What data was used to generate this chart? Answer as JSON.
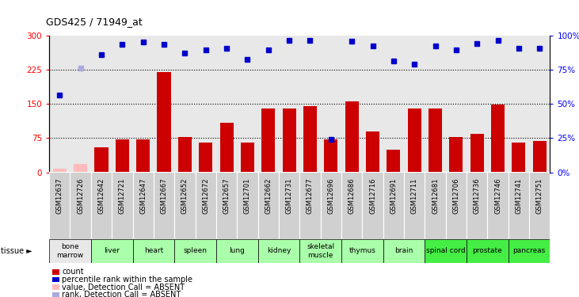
{
  "title": "GDS425 / 71949_at",
  "gsm_labels": [
    "GSM12637",
    "GSM12726",
    "GSM12642",
    "GSM12721",
    "GSM12647",
    "GSM12667",
    "GSM12652",
    "GSM12672",
    "GSM12657",
    "GSM12701",
    "GSM12662",
    "GSM12731",
    "GSM12677",
    "GSM12696",
    "GSM12686",
    "GSM12716",
    "GSM12691",
    "GSM12711",
    "GSM12681",
    "GSM12706",
    "GSM12736",
    "GSM12746",
    "GSM12741",
    "GSM12751"
  ],
  "bar_values": [
    8,
    18,
    55,
    73,
    72,
    220,
    78,
    65,
    108,
    65,
    140,
    140,
    145,
    72,
    155,
    90,
    50,
    140,
    140,
    78,
    85,
    148,
    65,
    68
  ],
  "bar_absent": [
    true,
    true,
    false,
    false,
    false,
    false,
    false,
    false,
    false,
    false,
    false,
    false,
    false,
    false,
    false,
    false,
    false,
    false,
    false,
    false,
    false,
    false,
    false,
    false
  ],
  "rank_values": [
    170,
    228,
    258,
    280,
    286,
    280,
    262,
    268,
    272,
    248,
    268,
    290,
    290,
    72,
    288,
    278,
    244,
    238,
    278,
    268,
    282,
    290,
    272,
    272
  ],
  "rank_absent": [
    false,
    true,
    false,
    false,
    false,
    false,
    false,
    false,
    false,
    false,
    false,
    false,
    false,
    false,
    false,
    false,
    false,
    false,
    false,
    false,
    false,
    false,
    false,
    false
  ],
  "tissues": [
    {
      "name": "bone\nmarrow",
      "start": 0,
      "end": 2,
      "color": "#e8e8e8"
    },
    {
      "name": "liver",
      "start": 2,
      "end": 4,
      "color": "#aaffaa"
    },
    {
      "name": "heart",
      "start": 4,
      "end": 6,
      "color": "#aaffaa"
    },
    {
      "name": "spleen",
      "start": 6,
      "end": 8,
      "color": "#aaffaa"
    },
    {
      "name": "lung",
      "start": 8,
      "end": 10,
      "color": "#aaffaa"
    },
    {
      "name": "kidney",
      "start": 10,
      "end": 12,
      "color": "#aaffaa"
    },
    {
      "name": "skeletal\nmuscle",
      "start": 12,
      "end": 14,
      "color": "#aaffaa"
    },
    {
      "name": "thymus",
      "start": 14,
      "end": 16,
      "color": "#aaffaa"
    },
    {
      "name": "brain",
      "start": 16,
      "end": 18,
      "color": "#aaffaa"
    },
    {
      "name": "spinal cord",
      "start": 18,
      "end": 20,
      "color": "#44ee44"
    },
    {
      "name": "prostate",
      "start": 20,
      "end": 22,
      "color": "#44ee44"
    },
    {
      "name": "pancreas",
      "start": 22,
      "end": 24,
      "color": "#44ee44"
    }
  ],
  "ylim_left": [
    0,
    300
  ],
  "ylim_right": [
    0,
    100
  ],
  "yticks_left": [
    0,
    75,
    150,
    225,
    300
  ],
  "yticks_right": [
    0,
    25,
    50,
    75,
    100
  ],
  "bar_color_present": "#cc0000",
  "bar_color_absent": "#ffbbbb",
  "rank_color_present": "#0000cc",
  "rank_color_absent": "#aaaadd",
  "plot_bg": "#e8e8e8",
  "gsm_bg": "#d0d0d0"
}
